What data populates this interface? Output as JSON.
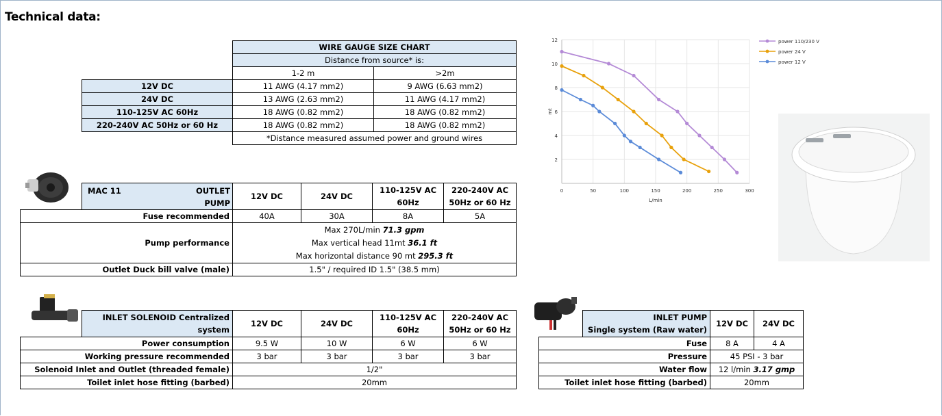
{
  "title": "Technical data:",
  "wire_gauge": {
    "header": "WIRE GAUGE SIZE CHART",
    "subheader": "Distance from source* is:",
    "col1": "1-2 m",
    "col2": ">2m",
    "rows": [
      {
        "label": "12V DC",
        "a": "11 AWG (4.17 mm2)",
        "b": "9 AWG (6.63 mm2)"
      },
      {
        "label": "24V DC",
        "a": "13 AWG (2.63 mm2)",
        "b": "11 AWG (4.17 mm2)"
      },
      {
        "label": "110-125V AC 60Hz",
        "a": "18 AWG (0.82 mm2)",
        "b": "18 AWG (0.82 mm2)"
      },
      {
        "label": "220-240V AC 50Hz or 60 Hz",
        "a": "18 AWG (0.82 mm2)",
        "b": "18 AWG (0.82 mm2)"
      }
    ],
    "note": "*Distance measured assumed power and ground wires"
  },
  "mac11": {
    "name": "MAC 11",
    "type_1": "OUTLET",
    "type_2": "PUMP",
    "cols": [
      "12V DC",
      "24V DC",
      "110-125V AC",
      "60Hz",
      "220-240V AC",
      "50Hz or 60 Hz"
    ],
    "fuse_label": "Fuse recommended",
    "fuse_values": [
      "40A",
      "30A",
      "8A",
      "5A"
    ],
    "perf_label": "Pump performance",
    "perf_1a": "Max 270L/min ",
    "perf_1b": "71.3 gpm",
    "perf_2a": "Max vertical head 11mt ",
    "perf_2b": "36.1 ft",
    "perf_3a": "Max horizontal distance 90 mt ",
    "perf_3b": "295.3 ft",
    "valve_label": "Outlet Duck bill valve (male)",
    "valve_value": "1.5\" / required ID 1.5\" (38.5 mm)"
  },
  "solenoid": {
    "name_1": "INLET SOLENOID Centralized",
    "name_2": "system",
    "cols": [
      "12V DC",
      "24V DC",
      "110-125V AC",
      "60Hz",
      "220-240V AC",
      "50Hz or 60 Hz"
    ],
    "power_label": "Power consumption",
    "power_values": [
      "9.5 W",
      "10 W",
      "6 W",
      "6 W"
    ],
    "pressure_label": "Working pressure recommended",
    "pressure_values": [
      "3 bar",
      "3 bar",
      "3 bar",
      "3 bar"
    ],
    "thread_label": "Solenoid Inlet and Outlet (threaded female)",
    "thread_value": "1/2\"",
    "hose_label": "Toilet inlet hose fitting (barbed)",
    "hose_value": "20mm"
  },
  "inlet_pump": {
    "name_1": "INLET PUMP",
    "name_2": "Single system (Raw water)",
    "cols": [
      "12V DC",
      "24V DC"
    ],
    "fuse_label": "Fuse",
    "fuse_values": [
      "8 A",
      "4 A"
    ],
    "pressure_label": "Pressure",
    "pressure_value": "45 PSI - 3 bar",
    "flow_label": "Water flow",
    "flow_a": "12 l/min ",
    "flow_b": "3.17 gmp",
    "hose_label": "Toilet inlet hose fitting (barbed)",
    "hose_value": "20mm"
  },
  "chart_data": {
    "type": "line",
    "title": "",
    "xlabel": "L/min",
    "ylabel": "mt",
    "xlim": [
      0,
      300
    ],
    "ylim": [
      0,
      12
    ],
    "xticks": [
      "0",
      "50",
      "100",
      "150",
      "200",
      "250",
      "300"
    ],
    "yticks": [
      "2",
      "4",
      "6",
      "8",
      "10",
      "12"
    ],
    "legend_position": "top-right",
    "series": [
      {
        "name": "power 110/230 V",
        "color": "#b48ad6",
        "x": [
          0,
          75,
          115,
          155,
          185,
          200,
          220,
          240,
          260,
          280
        ],
        "y": [
          11,
          10,
          9,
          7,
          6,
          5,
          4,
          3,
          2,
          0.9
        ]
      },
      {
        "name": "power 24 V",
        "color": "#e8a10c",
        "x": [
          0,
          35,
          65,
          90,
          115,
          135,
          160,
          175,
          195,
          235
        ],
        "y": [
          9.8,
          9,
          8,
          7,
          6,
          5,
          4,
          3,
          2,
          1
        ]
      },
      {
        "name": "power 12 V",
        "color": "#5b8bd8",
        "x": [
          0,
          30,
          50,
          60,
          85,
          100,
          110,
          125,
          155,
          190
        ],
        "y": [
          7.8,
          7,
          6.5,
          6,
          5,
          4,
          3.5,
          3,
          2,
          0.9
        ]
      }
    ]
  }
}
